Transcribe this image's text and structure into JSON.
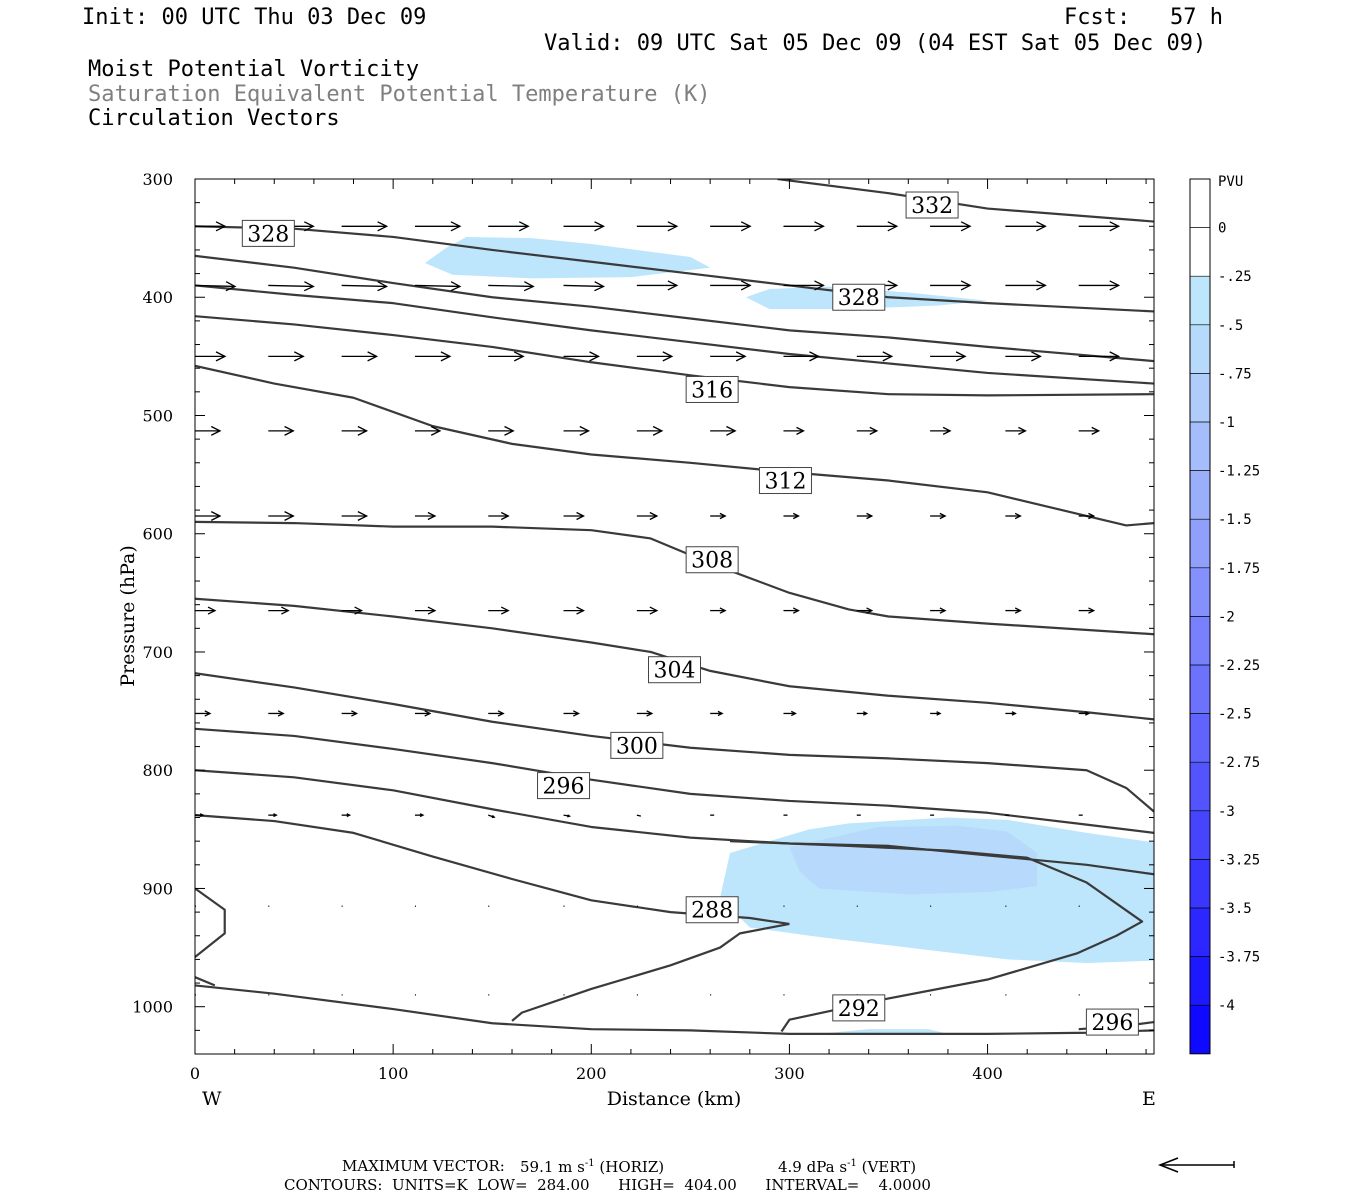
{
  "header": {
    "init": "Init: 00 UTC Thu 03 Dec 09",
    "fcst": "Fcst:   57 h",
    "valid": "Valid: 09 UTC Sat 05 Dec 09 (04 EST Sat 05 Dec 09)",
    "field1": "Moist Potential Vorticity",
    "field2": "Saturation Equivalent Potential Temperature (K)",
    "field3": "Circulation Vectors"
  },
  "footer": {
    "max_vector_label": "MAXIMUM VECTOR:",
    "max_vector_horiz": "59.1 m s",
    "horiz_tag": "(HORIZ)",
    "max_vector_vert": "4.9 dPa s",
    "vert_tag": "(VERT)",
    "exponent": "-1",
    "contours": "CONTOURS:  UNITS=K  LOW=  284.00      HIGH=  404.00      INTERVAL=    4.0000"
  },
  "colors": {
    "contour": "#3a3a3a",
    "pv_light": "#bde5fb",
    "pv_mid": "#a5c4f8"
  },
  "chart_data": {
    "type": "cross-section",
    "xlabel": "Distance (km)",
    "ylabel": "Pressure (hPa)",
    "x_start_label": "W",
    "x_end_label": "E",
    "xlim": [
      0,
      484
    ],
    "ylim": [
      1040,
      300
    ],
    "x_ticks": [
      0,
      100,
      200,
      300,
      400
    ],
    "y_ticks": [
      300,
      400,
      500,
      600,
      700,
      800,
      900,
      1000
    ],
    "colorbar": {
      "unit": "PVU",
      "labels": [
        "0",
        "-.25",
        "-.5",
        "-.75",
        "-1",
        "-1.25",
        "-1.5",
        "-1.75",
        "-2",
        "-2.25",
        "-2.5",
        "-2.75",
        "-3",
        "-3.25",
        "-3.5",
        "-3.75",
        "-4"
      ],
      "colors": [
        "#ffffff",
        "#ffffff",
        "#bde5fb",
        "#b7d9fb",
        "#b0ccfa",
        "#a5bdfa",
        "#9aaefa",
        "#8f9ffa",
        "#8490fb",
        "#7881fb",
        "#6c72fc",
        "#6063fc",
        "#5354fd",
        "#4645fd",
        "#3936fe",
        "#2b27fe",
        "#1d18ff",
        "#0f09ff"
      ]
    },
    "contour_labels": [
      {
        "value": "332",
        "x": 372,
        "p": 322
      },
      {
        "value": "328",
        "x": 37,
        "p": 346
      },
      {
        "value": "328",
        "x": 335,
        "p": 400
      },
      {
        "value": "316",
        "x": 261,
        "p": 478
      },
      {
        "value": "312",
        "x": 298,
        "p": 555
      },
      {
        "value": "308",
        "x": 261,
        "p": 622
      },
      {
        "value": "304",
        "x": 242,
        "p": 715
      },
      {
        "value": "300",
        "x": 223,
        "p": 779
      },
      {
        "value": "296",
        "x": 186,
        "p": 813
      },
      {
        "value": "288",
        "x": 261,
        "p": 918
      },
      {
        "value": "292",
        "x": 335,
        "p": 1001
      },
      {
        "value": "296",
        "x": 463,
        "p": 1013
      }
    ],
    "contours": [
      [
        [
          294,
          300
        ],
        [
          350,
          312
        ],
        [
          400,
          325
        ],
        [
          484,
          336
        ]
      ],
      [
        [
          0,
          340
        ],
        [
          50,
          342
        ],
        [
          100,
          349
        ],
        [
          150,
          360
        ],
        [
          200,
          370
        ],
        [
          250,
          380
        ],
        [
          300,
          390
        ],
        [
          350,
          400
        ],
        [
          400,
          405
        ],
        [
          484,
          412
        ]
      ],
      [
        [
          0,
          365
        ],
        [
          50,
          375
        ],
        [
          100,
          388
        ],
        [
          150,
          400
        ],
        [
          200,
          408
        ],
        [
          250,
          418
        ],
        [
          300,
          428
        ],
        [
          350,
          434
        ],
        [
          400,
          442
        ],
        [
          484,
          454
        ]
      ],
      [
        [
          0,
          390
        ],
        [
          50,
          398
        ],
        [
          100,
          405
        ],
        [
          150,
          417
        ],
        [
          200,
          428
        ],
        [
          250,
          438
        ],
        [
          300,
          448
        ],
        [
          350,
          456
        ],
        [
          400,
          464
        ],
        [
          484,
          473
        ]
      ],
      [
        [
          0,
          416
        ],
        [
          50,
          423
        ],
        [
          100,
          432
        ],
        [
          150,
          442
        ],
        [
          200,
          455
        ],
        [
          250,
          466
        ],
        [
          300,
          476
        ],
        [
          350,
          482
        ],
        [
          400,
          483
        ],
        [
          484,
          482
        ]
      ],
      [
        [
          0,
          458
        ],
        [
          40,
          473
        ],
        [
          80,
          485
        ],
        [
          120,
          509
        ],
        [
          160,
          524
        ],
        [
          200,
          533
        ],
        [
          250,
          540
        ],
        [
          300,
          548
        ],
        [
          350,
          555
        ],
        [
          400,
          565
        ],
        [
          470,
          593
        ],
        [
          484,
          591
        ]
      ],
      [
        [
          0,
          590
        ],
        [
          50,
          591
        ],
        [
          100,
          594
        ],
        [
          150,
          594
        ],
        [
          200,
          597
        ],
        [
          230,
          604
        ],
        [
          260,
          625
        ],
        [
          300,
          650
        ],
        [
          330,
          664
        ],
        [
          350,
          670
        ],
        [
          400,
          676
        ],
        [
          484,
          685
        ]
      ],
      [
        [
          0,
          655
        ],
        [
          50,
          661
        ],
        [
          100,
          670
        ],
        [
          150,
          680
        ],
        [
          200,
          692
        ],
        [
          230,
          700
        ],
        [
          260,
          716
        ],
        [
          300,
          729
        ],
        [
          350,
          737
        ],
        [
          400,
          743
        ],
        [
          450,
          751
        ],
        [
          484,
          757
        ]
      ],
      [
        [
          0,
          718
        ],
        [
          50,
          730
        ],
        [
          100,
          744
        ],
        [
          150,
          759
        ],
        [
          200,
          771
        ],
        [
          250,
          781
        ],
        [
          300,
          787
        ],
        [
          350,
          790
        ],
        [
          400,
          794
        ],
        [
          450,
          800
        ],
        [
          470,
          815
        ],
        [
          484,
          835
        ]
      ],
      [
        [
          0,
          765
        ],
        [
          50,
          771
        ],
        [
          100,
          782
        ],
        [
          150,
          794
        ],
        [
          200,
          808
        ],
        [
          250,
          820
        ],
        [
          300,
          826
        ],
        [
          350,
          830
        ],
        [
          400,
          836
        ],
        [
          450,
          846
        ],
        [
          484,
          853
        ]
      ],
      [
        [
          0,
          800
        ],
        [
          50,
          806
        ],
        [
          100,
          817
        ],
        [
          150,
          833
        ],
        [
          200,
          848
        ],
        [
          250,
          857
        ],
        [
          300,
          862
        ],
        [
          350,
          864
        ],
        [
          400,
          872
        ],
        [
          450,
          880
        ],
        [
          484,
          888
        ]
      ],
      [
        [
          0,
          838
        ],
        [
          40,
          843
        ],
        [
          80,
          853
        ],
        [
          120,
          873
        ],
        [
          160,
          892
        ],
        [
          200,
          910
        ],
        [
          240,
          920
        ],
        [
          280,
          925
        ],
        [
          300,
          930
        ]
      ],
      [
        [
          300,
          930
        ],
        [
          275,
          938
        ],
        [
          265,
          950
        ],
        [
          240,
          965
        ],
        [
          200,
          985
        ],
        [
          165,
          1005
        ],
        [
          160,
          1012
        ]
      ],
      [
        [
          270,
          860
        ],
        [
          330,
          864
        ],
        [
          380,
          868
        ],
        [
          420,
          874
        ],
        [
          450,
          895
        ],
        [
          478,
          928
        ],
        [
          465,
          940
        ],
        [
          445,
          955
        ],
        [
          400,
          977
        ],
        [
          350,
          993
        ],
        [
          300,
          1011
        ],
        [
          296,
          1021
        ]
      ],
      [
        [
          0,
          900
        ],
        [
          15,
          918
        ],
        [
          15,
          938
        ],
        [
          0,
          958
        ]
      ],
      [
        [
          0,
          975
        ],
        [
          10,
          982
        ]
      ],
      [
        [
          0,
          982
        ],
        [
          40,
          989
        ],
        [
          100,
          1002
        ],
        [
          150,
          1014
        ],
        [
          200,
          1019
        ],
        [
          250,
          1020
        ],
        [
          300,
          1023
        ],
        [
          350,
          1023
        ],
        [
          400,
          1023
        ],
        [
          450,
          1022
        ],
        [
          484,
          1020
        ]
      ],
      [
        [
          446,
          1019
        ],
        [
          470,
          1016
        ],
        [
          484,
          1013
        ]
      ]
    ],
    "pv_regions": [
      {
        "level": "-.25",
        "poly": [
          [
            116,
            371
          ],
          [
            127,
            358
          ],
          [
            137,
            349
          ],
          [
            170,
            350
          ],
          [
            200,
            355
          ],
          [
            250,
            366
          ],
          [
            260,
            375
          ],
          [
            220,
            383
          ],
          [
            170,
            384
          ],
          [
            130,
            381
          ]
        ]
      },
      {
        "level": "-.25",
        "poly": [
          [
            278,
            400
          ],
          [
            290,
            393
          ],
          [
            320,
            391
          ],
          [
            360,
            396
          ],
          [
            400,
            403
          ],
          [
            375,
            407
          ],
          [
            330,
            410
          ],
          [
            290,
            410
          ]
        ]
      },
      {
        "level": "-.25",
        "poly": [
          [
            270,
            870
          ],
          [
            310,
            850
          ],
          [
            330,
            845
          ],
          [
            380,
            840
          ],
          [
            410,
            842
          ],
          [
            450,
            853
          ],
          [
            484,
            861
          ],
          [
            484,
            961
          ],
          [
            450,
            963
          ],
          [
            410,
            960
          ],
          [
            370,
            952
          ],
          [
            340,
            946
          ],
          [
            315,
            941
          ],
          [
            280,
            933
          ],
          [
            265,
            908
          ]
        ]
      },
      {
        "level": "-.5",
        "poly": [
          [
            300,
            865
          ],
          [
            345,
            848
          ],
          [
            385,
            847
          ],
          [
            410,
            852
          ],
          [
            425,
            870
          ],
          [
            425,
            898
          ],
          [
            400,
            903
          ],
          [
            360,
            905
          ],
          [
            315,
            900
          ],
          [
            305,
            885
          ]
        ]
      },
      {
        "level": "-.25",
        "poly": [
          [
            315,
            1023
          ],
          [
            340,
            1019
          ],
          [
            370,
            1019
          ],
          [
            380,
            1023
          ]
        ]
      }
    ],
    "vectors": {
      "xs": [
        0,
        37,
        74,
        111,
        148,
        186,
        223,
        260,
        297,
        334,
        371,
        409,
        446
      ],
      "rows": [
        {
          "p": 340,
          "u": [
            30,
            45,
            45,
            45,
            40,
            40,
            40,
            40,
            40,
            40,
            40,
            40,
            40
          ],
          "v": [
            0,
            0,
            0,
            0,
            0,
            0,
            0,
            0,
            0,
            0,
            0,
            0,
            0
          ]
        },
        {
          "p": 390,
          "u": [
            40,
            45,
            45,
            45,
            45,
            40,
            40,
            40,
            40,
            40,
            40,
            40,
            40
          ],
          "v": [
            1,
            1,
            1,
            1,
            1,
            1,
            0,
            0,
            0,
            0,
            0,
            0,
            0
          ]
        },
        {
          "p": 450,
          "u": [
            30,
            35,
            35,
            35,
            35,
            35,
            35,
            35,
            35,
            35,
            35,
            35,
            40
          ],
          "v": [
            0,
            0,
            0,
            0,
            0,
            0,
            0,
            0,
            0,
            0,
            0,
            0,
            0
          ]
        },
        {
          "p": 513,
          "u": [
            25,
            25,
            25,
            25,
            25,
            25,
            25,
            25,
            20,
            20,
            20,
            20,
            20
          ],
          "v": [
            0,
            0,
            0,
            0,
            0,
            0,
            0,
            0,
            0,
            0,
            0,
            0,
            0
          ]
        },
        {
          "p": 585,
          "u": [
            25,
            25,
            25,
            20,
            20,
            20,
            20,
            15,
            15,
            15,
            15,
            15,
            15
          ],
          "v": [
            0,
            0,
            0,
            0,
            0,
            0,
            0,
            0,
            0,
            0,
            0,
            0,
            0
          ]
        },
        {
          "p": 665,
          "u": [
            20,
            20,
            20,
            20,
            20,
            20,
            20,
            15,
            15,
            15,
            15,
            15,
            15
          ],
          "v": [
            0,
            0,
            0,
            0,
            0,
            0,
            0,
            0,
            0,
            0,
            0,
            0,
            0
          ]
        },
        {
          "p": 752,
          "u": [
            15,
            15,
            15,
            15,
            15,
            15,
            15,
            12,
            12,
            10,
            10,
            10,
            10
          ],
          "v": [
            0,
            0,
            0,
            0,
            0,
            0,
            0,
            0,
            0,
            0,
            0,
            0,
            0
          ]
        },
        {
          "p": 838,
          "u": [
            8,
            8,
            8,
            8,
            6,
            6,
            4,
            4,
            4,
            4,
            4,
            4,
            4
          ],
          "v": [
            0,
            0,
            0,
            0,
            2,
            1,
            1,
            0,
            0,
            0,
            0,
            0,
            0
          ]
        },
        {
          "p": 915,
          "u": [
            1,
            1,
            1,
            1,
            1,
            1,
            1,
            1,
            1,
            1,
            1,
            1,
            1
          ],
          "v": [
            0,
            0,
            0,
            0,
            0,
            0,
            0,
            0,
            0,
            0,
            0,
            0,
            0
          ]
        },
        {
          "p": 990,
          "u": [
            1,
            1,
            1,
            1,
            1,
            1,
            1,
            1,
            1,
            1,
            1,
            1,
            1
          ],
          "v": [
            0,
            0,
            0,
            0,
            0,
            0,
            0,
            0,
            0,
            0,
            0,
            0,
            0
          ]
        }
      ]
    }
  }
}
